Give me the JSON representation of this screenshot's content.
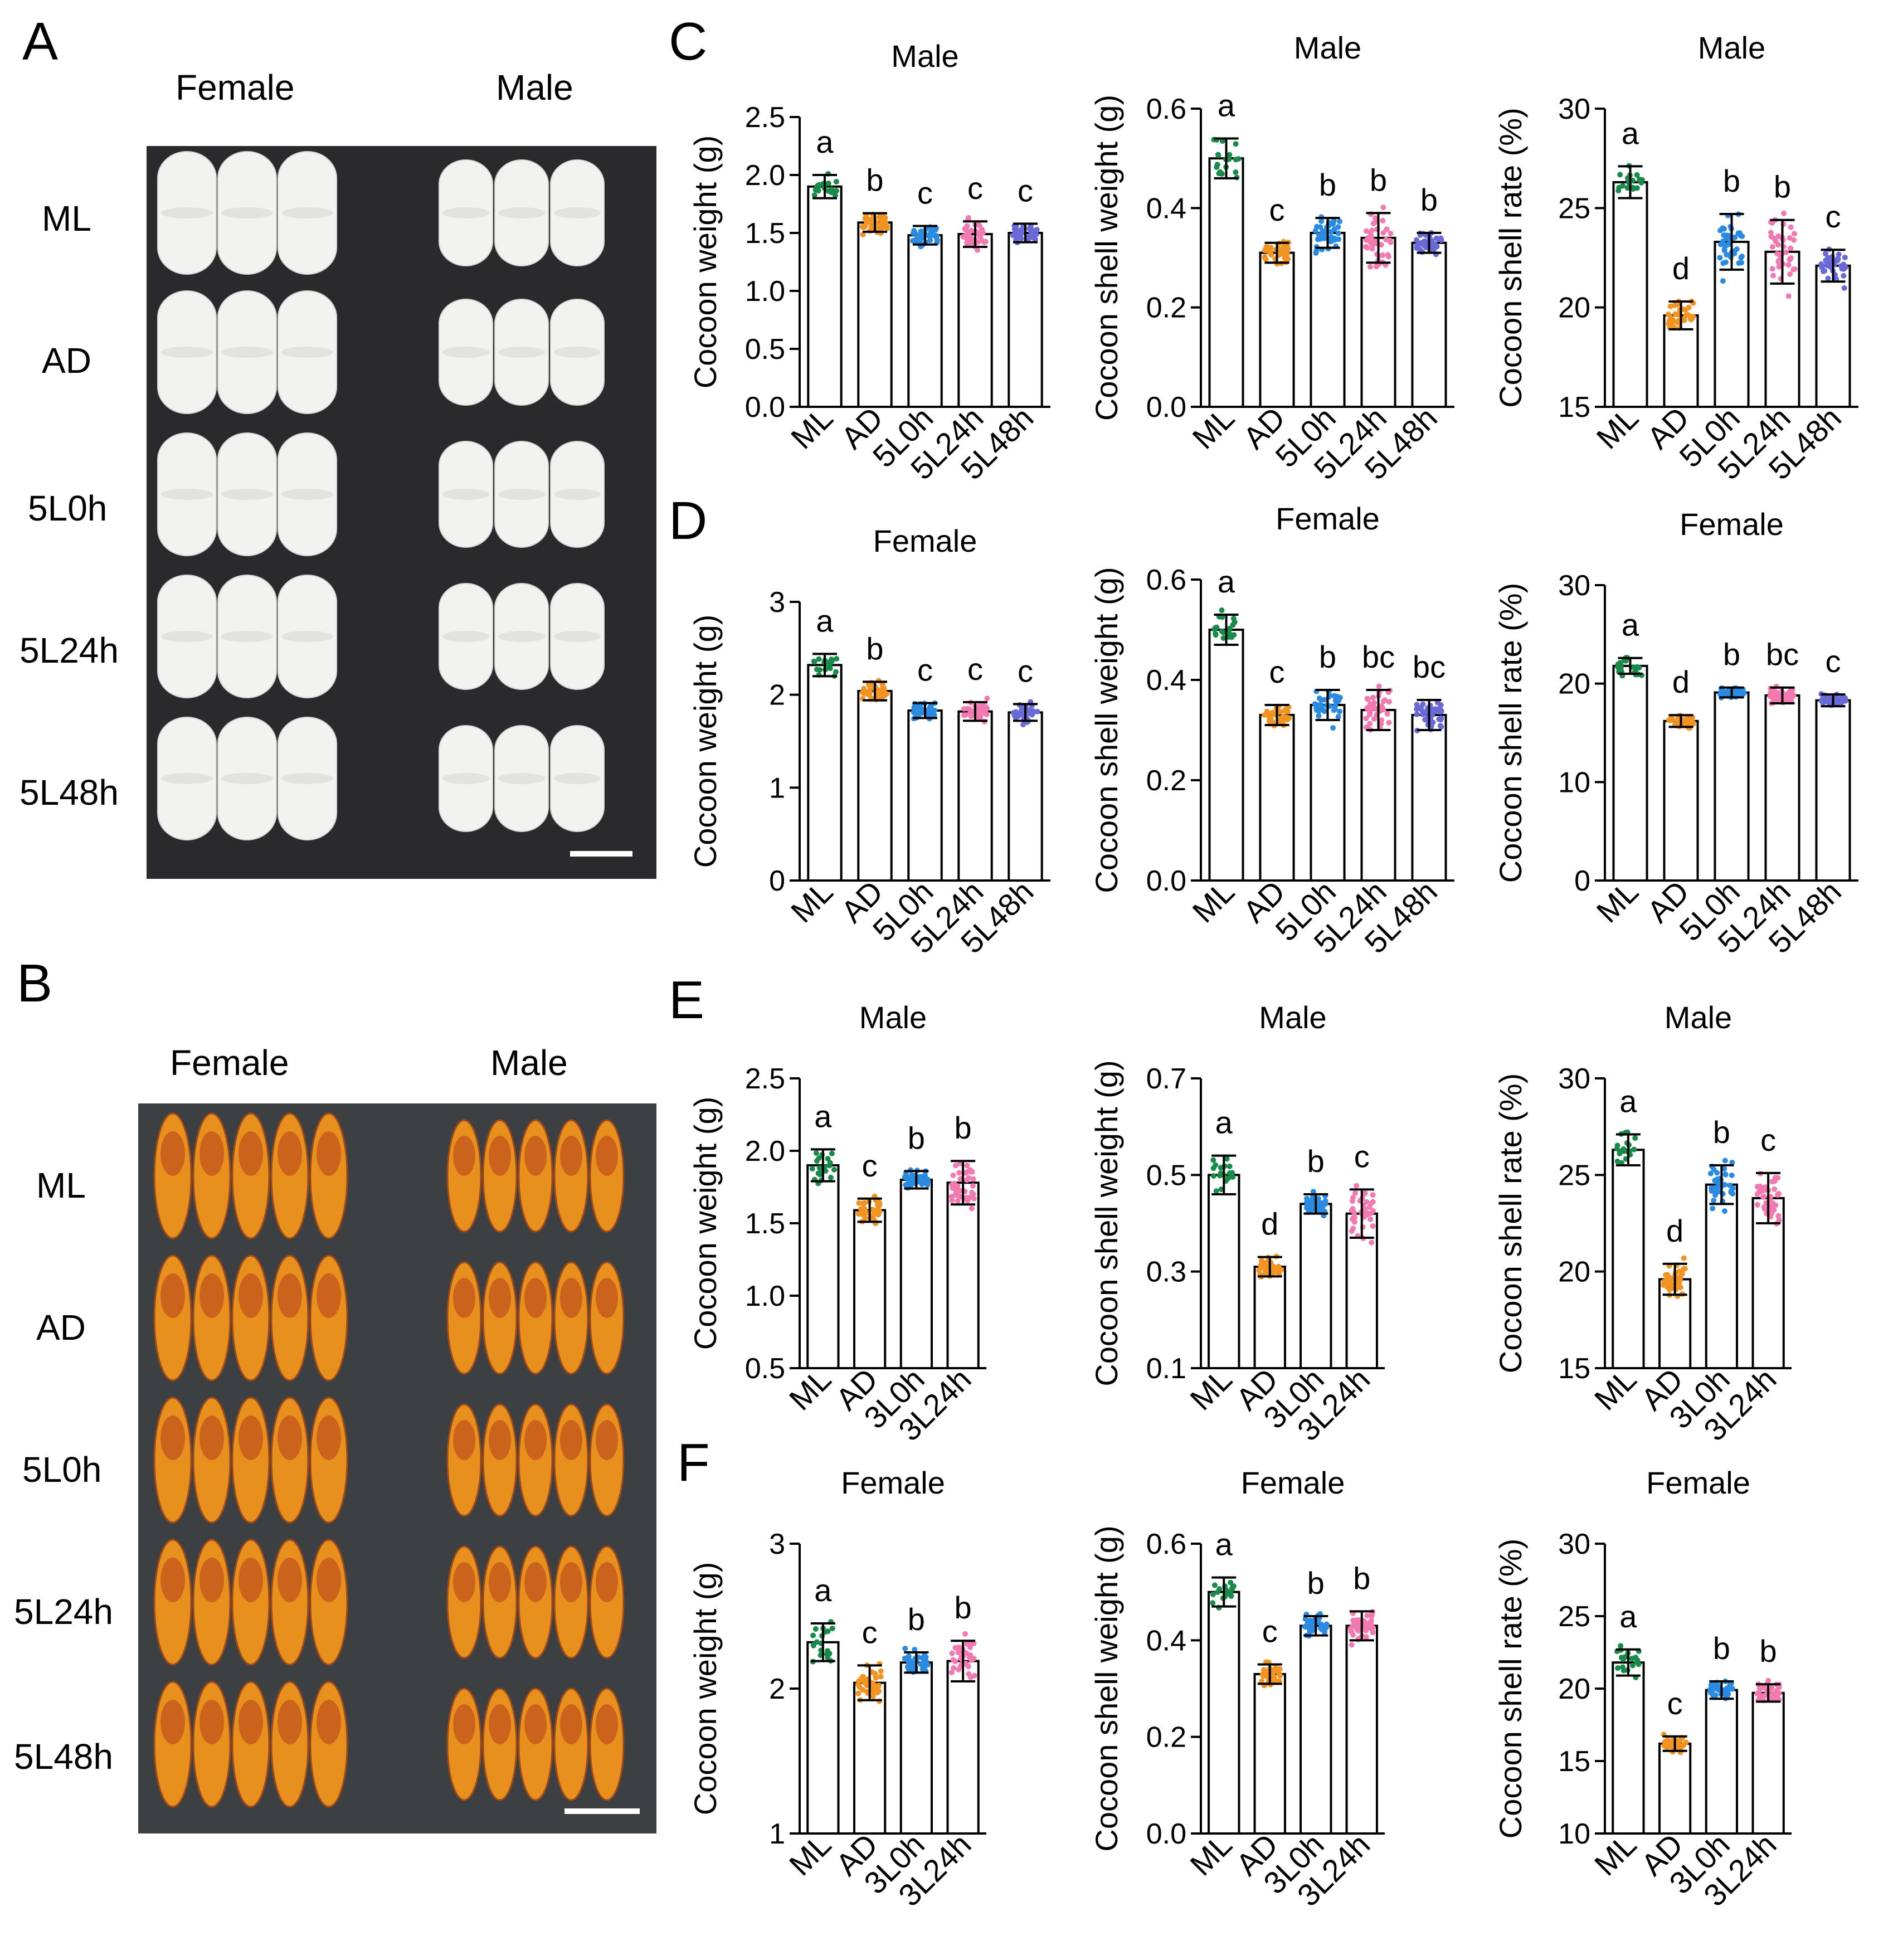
{
  "panel_labels": [
    "A",
    "B",
    "C",
    "D",
    "E",
    "F"
  ],
  "photo_a": {
    "columns": [
      "Female",
      "Male"
    ],
    "rows": [
      "ML",
      "AD",
      "5L0h",
      "5L24h",
      "5L48h"
    ],
    "background": "#2a2a2c",
    "item_color": "#f2f2f0"
  },
  "photo_b": {
    "columns": [
      "Female",
      "Male"
    ],
    "rows": [
      "ML",
      "AD",
      "5L0h",
      "5L24h",
      "5L48h"
    ],
    "background": "#3d4042",
    "item_color": "#e8901e"
  },
  "group_colors": [
    "#1a8a4a",
    "#f29422",
    "#2a8be0",
    "#f27ab0",
    "#6a6ad6"
  ],
  "chart_data": [
    {
      "id": "C1",
      "type": "bar",
      "title": "Male",
      "ylabel": "Cocoon weight (g)",
      "categories": [
        "ML",
        "AD",
        "5L0h",
        "5L24h",
        "5L48h"
      ],
      "values": [
        1.9,
        1.59,
        1.48,
        1.49,
        1.5
      ],
      "errors": [
        0.1,
        0.08,
        0.08,
        0.11,
        0.08
      ],
      "letters": [
        "a",
        "b",
        "c",
        "c",
        "c"
      ],
      "ylim": [
        0,
        2.5
      ],
      "ticks": [
        "0.0",
        "0.5",
        "1.0",
        "1.5",
        "2.0",
        "2.5"
      ],
      "tick_values": [
        0,
        0.5,
        1,
        1.5,
        2,
        2.5
      ],
      "n_points": [
        20,
        40,
        40,
        40,
        40
      ],
      "grid": false
    },
    {
      "id": "C2",
      "type": "bar",
      "title": "Male",
      "ylabel": "Cocoon shell weight (g)",
      "categories": [
        "ML",
        "AD",
        "5L0h",
        "5L24h",
        "5L48h"
      ],
      "values": [
        0.5,
        0.31,
        0.35,
        0.34,
        0.33
      ],
      "errors": [
        0.04,
        0.02,
        0.03,
        0.05,
        0.02
      ],
      "letters": [
        "a",
        "c",
        "b",
        "b",
        "b"
      ],
      "ylim": [
        0,
        0.6
      ],
      "ticks": [
        "0.0",
        "0.2",
        "0.4",
        "0.6"
      ],
      "tick_values": [
        0,
        0.2,
        0.4,
        0.6
      ],
      "n_points": [
        20,
        40,
        40,
        40,
        40
      ],
      "grid": false
    },
    {
      "id": "C3",
      "type": "bar",
      "title": "Male",
      "ylabel": "Cocoon shell rate (%)",
      "categories": [
        "ML",
        "AD",
        "5L0h",
        "5L24h",
        "5L48h"
      ],
      "values": [
        26.3,
        19.6,
        23.3,
        22.8,
        22.1
      ],
      "errors": [
        0.8,
        0.7,
        1.4,
        1.6,
        0.8
      ],
      "letters": [
        "a",
        "d",
        "b",
        "b",
        "c"
      ],
      "ylim": [
        15,
        30
      ],
      "ticks": [
        "15",
        "20",
        "25",
        "30"
      ],
      "tick_values": [
        15,
        20,
        25,
        30
      ],
      "n_points": [
        20,
        40,
        40,
        40,
        40
      ],
      "grid": false
    },
    {
      "id": "D1",
      "type": "bar",
      "title": "Female",
      "ylabel": "Cocoon weight (g)",
      "categories": [
        "ML",
        "AD",
        "5L0h",
        "5L24h",
        "5L48h"
      ],
      "values": [
        2.32,
        2.04,
        1.83,
        1.82,
        1.81
      ],
      "errors": [
        0.12,
        0.1,
        0.08,
        0.1,
        0.09
      ],
      "letters": [
        "a",
        "b",
        "c",
        "c",
        "c"
      ],
      "ylim": [
        0,
        3
      ],
      "ticks": [
        "0",
        "1",
        "2",
        "3"
      ],
      "tick_values": [
        0,
        1,
        2,
        3
      ],
      "n_points": [
        20,
        40,
        40,
        40,
        40
      ],
      "grid": false
    },
    {
      "id": "D2",
      "type": "bar",
      "title": "Female",
      "ylabel": "Cocoon shell weight (g)",
      "categories": [
        "ML",
        "AD",
        "5L0h",
        "5L24h",
        "5L48h"
      ],
      "values": [
        0.5,
        0.33,
        0.35,
        0.34,
        0.33
      ],
      "errors": [
        0.03,
        0.02,
        0.03,
        0.04,
        0.03
      ],
      "letters": [
        "a",
        "c",
        "b",
        "bc",
        "bc"
      ],
      "ylim": [
        0,
        0.6
      ],
      "ticks": [
        "0.0",
        "0.2",
        "0.4",
        "0.6"
      ],
      "tick_values": [
        0,
        0.2,
        0.4,
        0.6
      ],
      "n_points": [
        20,
        40,
        40,
        40,
        40
      ],
      "grid": false
    },
    {
      "id": "D3",
      "type": "bar",
      "title": "Female",
      "ylabel": "Cocoon shell rate (%)",
      "categories": [
        "ML",
        "AD",
        "5L0h",
        "5L24h",
        "5L48h"
      ],
      "values": [
        21.8,
        16.2,
        19.1,
        18.8,
        18.3
      ],
      "errors": [
        0.8,
        0.6,
        0.5,
        0.8,
        0.6
      ],
      "letters": [
        "a",
        "d",
        "b",
        "bc",
        "c"
      ],
      "ylim": [
        0,
        30
      ],
      "ticks": [
        "0",
        "10",
        "20",
        "30"
      ],
      "tick_values": [
        0,
        10,
        20,
        30
      ],
      "n_points": [
        20,
        40,
        40,
        40,
        40
      ],
      "grid": false
    },
    {
      "id": "E1",
      "type": "bar",
      "title": "Male",
      "ylabel": "Cocoon weight (g)",
      "categories": [
        "ML",
        "AD",
        "3L0h",
        "3L24h"
      ],
      "values": [
        1.9,
        1.59,
        1.8,
        1.78
      ],
      "errors": [
        0.11,
        0.08,
        0.06,
        0.15
      ],
      "letters": [
        "a",
        "c",
        "b",
        "b"
      ],
      "ylim": [
        0.5,
        2.5
      ],
      "ticks": [
        "0.5",
        "1.0",
        "1.5",
        "2.0",
        "2.5"
      ],
      "tick_values": [
        0.5,
        1,
        1.5,
        2,
        2.5
      ],
      "n_points": [
        20,
        40,
        40,
        40
      ],
      "grid": false
    },
    {
      "id": "E2",
      "type": "bar",
      "title": "Male",
      "ylabel": "Cocoon shell weight (g)",
      "categories": [
        "ML",
        "AD",
        "3L0h",
        "3L24h"
      ],
      "values": [
        0.5,
        0.31,
        0.44,
        0.42
      ],
      "errors": [
        0.04,
        0.02,
        0.02,
        0.05
      ],
      "letters": [
        "a",
        "d",
        "b",
        "c"
      ],
      "ylim": [
        0.1,
        0.7
      ],
      "ticks": [
        "0.1",
        "0.3",
        "0.5",
        "0.7"
      ],
      "tick_values": [
        0.1,
        0.3,
        0.5,
        0.7
      ],
      "n_points": [
        20,
        40,
        40,
        40
      ],
      "grid": false
    },
    {
      "id": "E3",
      "type": "bar",
      "title": "Male",
      "ylabel": "Cocoon shell rate (%)",
      "categories": [
        "ML",
        "AD",
        "3L0h",
        "3L24h"
      ],
      "values": [
        26.3,
        19.6,
        24.5,
        23.8
      ],
      "errors": [
        0.8,
        0.8,
        1.0,
        1.3
      ],
      "letters": [
        "a",
        "d",
        "b",
        "c"
      ],
      "ylim": [
        15,
        30
      ],
      "ticks": [
        "15",
        "20",
        "25",
        "30"
      ],
      "tick_values": [
        15,
        20,
        25,
        30
      ],
      "n_points": [
        20,
        40,
        40,
        40
      ],
      "grid": false
    },
    {
      "id": "F1",
      "type": "bar",
      "title": "Female",
      "ylabel": "Cocoon weight (g)",
      "categories": [
        "ML",
        "AD",
        "3L0h",
        "3L24h"
      ],
      "values": [
        2.32,
        2.04,
        2.18,
        2.19
      ],
      "errors": [
        0.13,
        0.12,
        0.07,
        0.14
      ],
      "letters": [
        "a",
        "c",
        "b",
        "b"
      ],
      "ylim": [
        1,
        3
      ],
      "ticks": [
        "1",
        "2",
        "3"
      ],
      "tick_values": [
        1,
        2,
        3
      ],
      "n_points": [
        20,
        40,
        40,
        40
      ],
      "grid": false
    },
    {
      "id": "F2",
      "type": "bar",
      "title": "Female",
      "ylabel": "Cocoon shell weight (g)",
      "categories": [
        "ML",
        "AD",
        "3L0h",
        "3L24h"
      ],
      "values": [
        0.5,
        0.33,
        0.43,
        0.43
      ],
      "errors": [
        0.03,
        0.02,
        0.02,
        0.03
      ],
      "letters": [
        "a",
        "c",
        "b",
        "b"
      ],
      "ylim": [
        0,
        0.6
      ],
      "ticks": [
        "0.0",
        "0.2",
        "0.4",
        "0.6"
      ],
      "tick_values": [
        0,
        0.2,
        0.4,
        0.6
      ],
      "n_points": [
        20,
        40,
        40,
        40
      ],
      "grid": false
    },
    {
      "id": "F3",
      "type": "bar",
      "title": "Female",
      "ylabel": "Cocoon shell rate (%)",
      "categories": [
        "ML",
        "AD",
        "3L0h",
        "3L24h"
      ],
      "values": [
        21.8,
        16.2,
        19.9,
        19.7
      ],
      "errors": [
        0.9,
        0.5,
        0.6,
        0.6
      ],
      "letters": [
        "a",
        "c",
        "b",
        "b"
      ],
      "ylim": [
        10,
        30
      ],
      "ticks": [
        "10",
        "15",
        "20",
        "25",
        "30"
      ],
      "tick_values": [
        10,
        15,
        20,
        25,
        30
      ],
      "n_points": [
        20,
        40,
        40,
        40
      ],
      "grid": false
    }
  ]
}
